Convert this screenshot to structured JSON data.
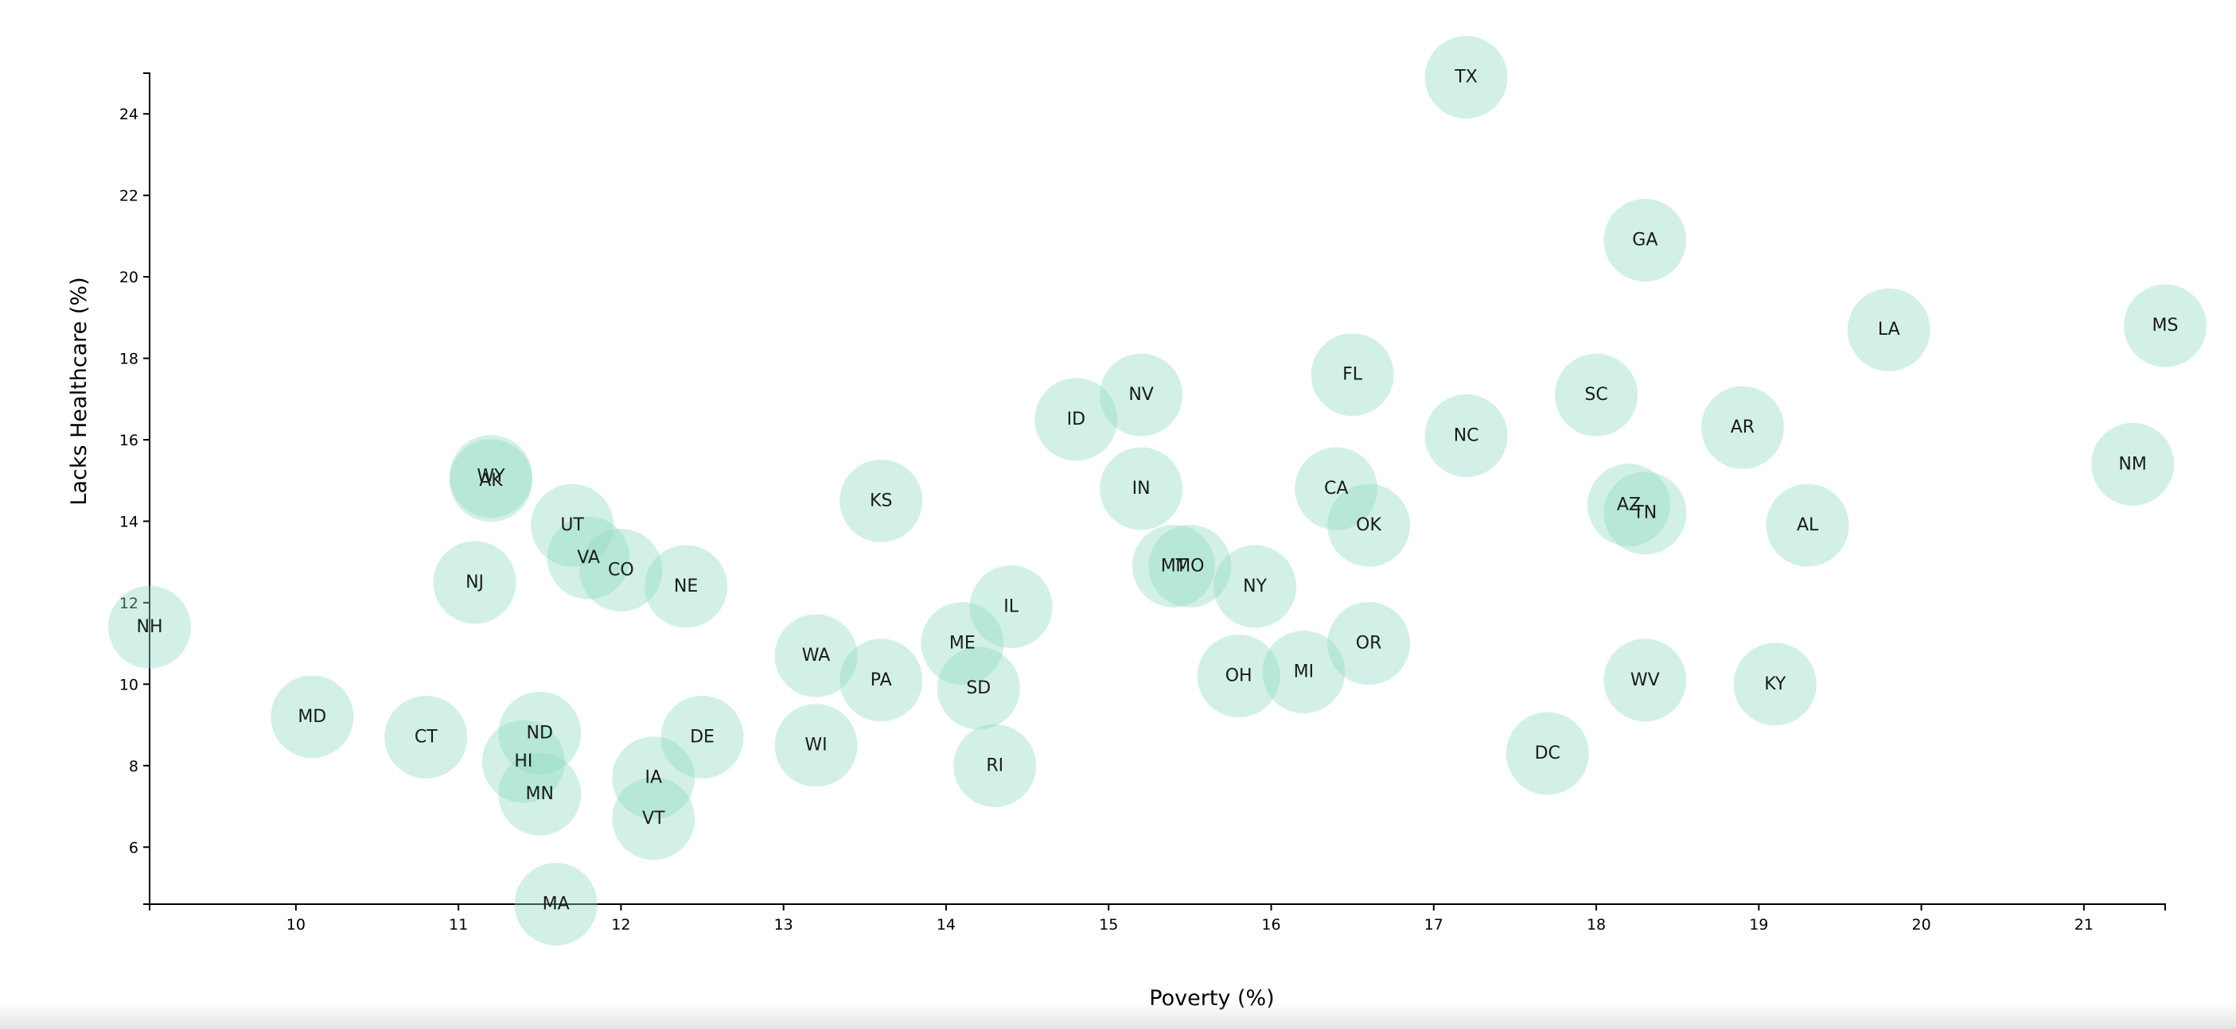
{
  "chart_data": {
    "type": "scatter",
    "xlabel": "Poverty (%)",
    "ylabel": "Lacks Healthcare (%)",
    "xlim": [
      9.1,
      21.5
    ],
    "ylim": [
      4.6,
      25.0
    ],
    "x_ticks": [
      10,
      11,
      12,
      13,
      14,
      15,
      16,
      17,
      18,
      19,
      20,
      21
    ],
    "y_ticks": [
      6,
      8,
      10,
      12,
      14,
      16,
      18,
      20,
      22,
      24
    ],
    "marker_color": "#8fd9c2",
    "points": [
      {
        "label": "TX",
        "x": 17.2,
        "y": 24.9
      },
      {
        "label": "GA",
        "x": 18.3,
        "y": 20.9
      },
      {
        "label": "LA",
        "x": 19.8,
        "y": 18.7
      },
      {
        "label": "MS",
        "x": 21.5,
        "y": 18.8
      },
      {
        "label": "FL",
        "x": 16.5,
        "y": 17.6
      },
      {
        "label": "SC",
        "x": 18.0,
        "y": 17.1
      },
      {
        "label": "NV",
        "x": 15.2,
        "y": 17.1
      },
      {
        "label": "ID",
        "x": 14.8,
        "y": 16.5
      },
      {
        "label": "AR",
        "x": 18.9,
        "y": 16.3
      },
      {
        "label": "NC",
        "x": 17.2,
        "y": 16.1
      },
      {
        "label": "NM",
        "x": 21.3,
        "y": 15.4
      },
      {
        "label": "WY",
        "x": 11.2,
        "y": 15.1
      },
      {
        "label": "AK",
        "x": 11.2,
        "y": 15.0
      },
      {
        "label": "IN",
        "x": 15.2,
        "y": 14.8
      },
      {
        "label": "CA",
        "x": 16.4,
        "y": 14.8
      },
      {
        "label": "KS",
        "x": 13.6,
        "y": 14.5
      },
      {
        "label": "AZ",
        "x": 18.2,
        "y": 14.4
      },
      {
        "label": "TN",
        "x": 18.3,
        "y": 14.2
      },
      {
        "label": "OK",
        "x": 16.6,
        "y": 13.9
      },
      {
        "label": "AL",
        "x": 19.3,
        "y": 13.9
      },
      {
        "label": "UT",
        "x": 11.7,
        "y": 13.9
      },
      {
        "label": "VA",
        "x": 11.8,
        "y": 13.1
      },
      {
        "label": "CO",
        "x": 12.0,
        "y": 12.8
      },
      {
        "label": "MT",
        "x": 15.4,
        "y": 12.9
      },
      {
        "label": "MO",
        "x": 15.5,
        "y": 12.9
      },
      {
        "label": "NY",
        "x": 15.9,
        "y": 12.4
      },
      {
        "label": "NJ",
        "x": 11.1,
        "y": 12.5
      },
      {
        "label": "NE",
        "x": 12.4,
        "y": 12.4
      },
      {
        "label": "IL",
        "x": 14.4,
        "y": 11.9
      },
      {
        "label": "NH",
        "x": 9.1,
        "y": 11.4
      },
      {
        "label": "ME",
        "x": 14.1,
        "y": 11.0
      },
      {
        "label": "OR",
        "x": 16.6,
        "y": 11.0
      },
      {
        "label": "WA",
        "x": 13.2,
        "y": 10.7
      },
      {
        "label": "OH",
        "x": 15.8,
        "y": 10.2
      },
      {
        "label": "MI",
        "x": 16.2,
        "y": 10.3
      },
      {
        "label": "PA",
        "x": 13.6,
        "y": 10.1
      },
      {
        "label": "WV",
        "x": 18.3,
        "y": 10.1
      },
      {
        "label": "KY",
        "x": 19.1,
        "y": 10.0
      },
      {
        "label": "SD",
        "x": 14.2,
        "y": 9.9
      },
      {
        "label": "MD",
        "x": 10.1,
        "y": 9.2
      },
      {
        "label": "ND",
        "x": 11.5,
        "y": 8.8
      },
      {
        "label": "CT",
        "x": 10.8,
        "y": 8.7
      },
      {
        "label": "DE",
        "x": 12.5,
        "y": 8.7
      },
      {
        "label": "WI",
        "x": 13.2,
        "y": 8.5
      },
      {
        "label": "DC",
        "x": 17.7,
        "y": 8.3
      },
      {
        "label": "HI",
        "x": 11.4,
        "y": 8.1
      },
      {
        "label": "RI",
        "x": 14.3,
        "y": 8.0
      },
      {
        "label": "IA",
        "x": 12.2,
        "y": 7.7
      },
      {
        "label": "MN",
        "x": 11.5,
        "y": 7.3
      },
      {
        "label": "VT",
        "x": 12.2,
        "y": 6.7
      },
      {
        "label": "MA",
        "x": 11.6,
        "y": 4.6
      }
    ]
  }
}
